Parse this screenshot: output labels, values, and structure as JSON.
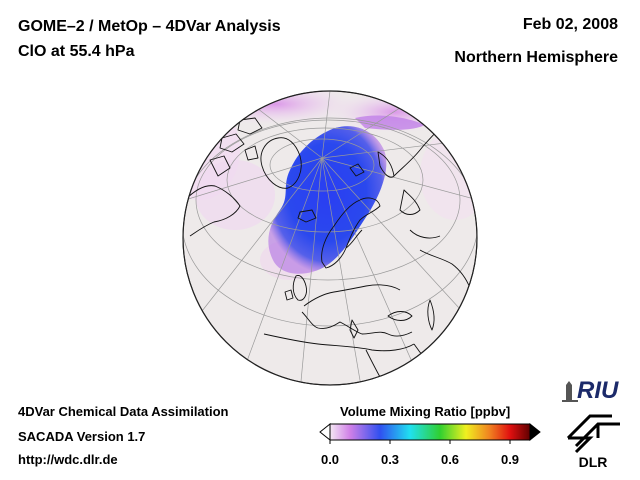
{
  "header": {
    "title_line1": "GOME–2 / MetOp – 4DVar Analysis",
    "title_line2": "ClO at 55.4 hPa",
    "date": "Feb 02, 2008",
    "region": "Northern Hemisphere"
  },
  "footer": {
    "line1": "4DVar Chemical Data Assimilation",
    "line2": "SACADA Version 1.7",
    "line3": "http://wdc.dlr.de"
  },
  "colorbar": {
    "title": "Volume Mixing Ratio [ppbv]",
    "ticks": [
      "0.0",
      "0.3",
      "0.6",
      "0.9"
    ],
    "tick_values": [
      0.0,
      0.3,
      0.6,
      0.9
    ],
    "range": [
      0.0,
      1.0
    ],
    "colors": [
      "#f4e8f4",
      "#d080e8",
      "#3050f0",
      "#20e0f0",
      "#30d030",
      "#f0f020",
      "#f08020",
      "#e01010",
      "#600000"
    ]
  },
  "logos": {
    "riu": "RIU",
    "dlr": "DLR"
  },
  "colors": {
    "ocean": "#eeeaea",
    "clo_high": "#1f3ff0",
    "clo_low": "#e8b8f0"
  }
}
